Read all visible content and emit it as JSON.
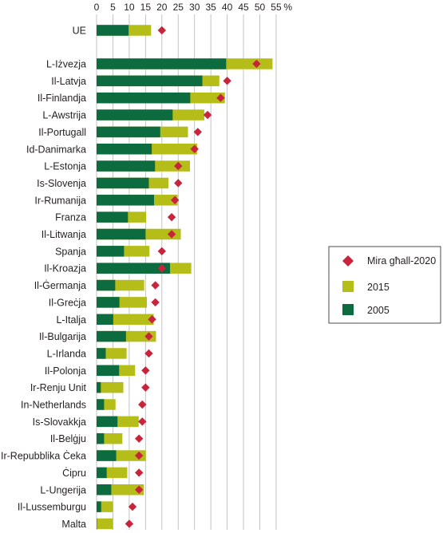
{
  "chart_data": {
    "type": "bar",
    "orientation": "horizontal",
    "x_unit": "%",
    "xlim": [
      0,
      55
    ],
    "x_ticks": [
      0,
      5,
      10,
      15,
      20,
      25,
      30,
      35,
      40,
      45,
      50,
      55
    ],
    "grid": true,
    "legend_position": "right",
    "categories": [
      "UE",
      "L-Iżvezja",
      "Il-Latvja",
      "Il-Finlandja",
      "L-Awstrija",
      "Il-Portugall",
      "Id-Danimarka",
      "L-Estonja",
      "Is-Slovenja",
      "Ir-Rumanija",
      "Franza",
      "Il-Litwanja",
      "Spanja",
      "Il-Kroazja",
      "Il-Ġermanja",
      "Il-Greċja",
      "L-Italja",
      "Il-Bulgarija",
      "L-Irlanda",
      "Il-Polonja",
      "Ir-Renju Unit",
      "In-Netherlands",
      "Is-Slovakkja",
      "Il-Belġju",
      "Ir-Repubblika Ċeka",
      "Ċipru",
      "L-Ungerija",
      "Il-Lussemburgu",
      "Malta"
    ],
    "series": [
      {
        "name": "2005",
        "color": "#0c6b3f",
        "values": [
          9.8,
          39.7,
          32.4,
          28.7,
          23.3,
          19.5,
          16.9,
          17.9,
          16.0,
          17.6,
          9.6,
          15.0,
          8.4,
          22.5,
          5.7,
          7.0,
          5.1,
          9.0,
          2.8,
          6.9,
          1.3,
          2.3,
          6.4,
          2.3,
          6.0,
          3.1,
          4.5,
          1.4,
          0.1
        ]
      },
      {
        "name": "2015",
        "color": "#b5bd19",
        "values": [
          16.7,
          53.9,
          37.6,
          39.3,
          33.0,
          28.0,
          30.8,
          28.6,
          22.0,
          24.8,
          15.2,
          25.8,
          16.2,
          29.0,
          14.6,
          15.4,
          17.5,
          18.2,
          9.2,
          11.8,
          8.2,
          5.8,
          12.9,
          7.9,
          15.1,
          9.4,
          14.5,
          5.0,
          5.0
        ]
      },
      {
        "name": "Mira għall-2020",
        "color": "#c8243c",
        "marker": "diamond",
        "values": [
          20,
          49,
          40,
          38,
          34,
          31,
          30,
          25,
          25,
          24,
          23,
          23,
          20,
          20,
          18,
          18,
          17,
          16,
          16,
          15,
          15,
          14,
          14,
          13,
          13,
          13,
          13,
          11,
          10
        ]
      }
    ]
  }
}
